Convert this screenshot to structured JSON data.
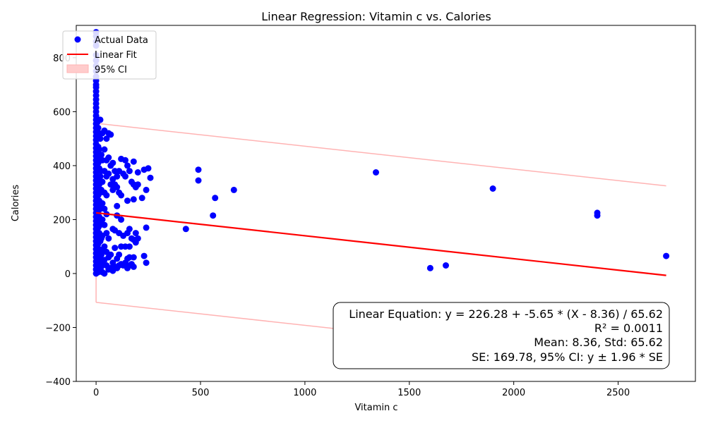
{
  "chart_data": {
    "type": "scatter",
    "title": "Linear Regression: Vitamin c vs. Calories",
    "xlabel": "Vitamin c",
    "ylabel": "Calories",
    "xlim": [
      -95,
      2870
    ],
    "ylim": [
      -400,
      920
    ],
    "xticks": [
      0,
      500,
      1000,
      1500,
      2000,
      2500
    ],
    "yticks": [
      -400,
      -200,
      0,
      200,
      400,
      600,
      800
    ],
    "grid": false,
    "legend_position": "top-left",
    "legend": [
      "Actual Data",
      "Linear Fit",
      "95% CI"
    ],
    "colors": {
      "points": "#0000ff",
      "fit": "#ff0000",
      "ci": "#ffb3b3"
    },
    "series": [
      {
        "name": "Actual Data",
        "points": [
          [
            0,
            895
          ],
          [
            0,
            880
          ],
          [
            0,
            860
          ],
          [
            0,
            845
          ],
          [
            0,
            810
          ],
          [
            0,
            790
          ],
          [
            0,
            770
          ],
          [
            0,
            750
          ],
          [
            0,
            730
          ],
          [
            0,
            715
          ],
          [
            0,
            700
          ],
          [
            0,
            690
          ],
          [
            0,
            675
          ],
          [
            0,
            660
          ],
          [
            0,
            645
          ],
          [
            0,
            630
          ],
          [
            0,
            615
          ],
          [
            0,
            600
          ],
          [
            0,
            585
          ],
          [
            0,
            570
          ],
          [
            0,
            555
          ],
          [
            0,
            540
          ],
          [
            0,
            525
          ],
          [
            0,
            510
          ],
          [
            0,
            495
          ],
          [
            0,
            480
          ],
          [
            0,
            465
          ],
          [
            0,
            450
          ],
          [
            0,
            435
          ],
          [
            0,
            420
          ],
          [
            0,
            405
          ],
          [
            0,
            390
          ],
          [
            0,
            375
          ],
          [
            0,
            360
          ],
          [
            0,
            345
          ],
          [
            0,
            330
          ],
          [
            0,
            315
          ],
          [
            0,
            300
          ],
          [
            0,
            285
          ],
          [
            0,
            270
          ],
          [
            0,
            255
          ],
          [
            0,
            240
          ],
          [
            0,
            225
          ],
          [
            0,
            210
          ],
          [
            0,
            195
          ],
          [
            0,
            180
          ],
          [
            0,
            165
          ],
          [
            0,
            150
          ],
          [
            0,
            135
          ],
          [
            0,
            120
          ],
          [
            0,
            105
          ],
          [
            0,
            90
          ],
          [
            0,
            75
          ],
          [
            0,
            60
          ],
          [
            0,
            45
          ],
          [
            0,
            30
          ],
          [
            0,
            15
          ],
          [
            0,
            0
          ],
          [
            5,
            560
          ],
          [
            5,
            500
          ],
          [
            5,
            440
          ],
          [
            5,
            380
          ],
          [
            5,
            320
          ],
          [
            5,
            260
          ],
          [
            5,
            200
          ],
          [
            5,
            140
          ],
          [
            5,
            80
          ],
          [
            5,
            20
          ],
          [
            10,
            540
          ],
          [
            10,
            470
          ],
          [
            10,
            410
          ],
          [
            10,
            350
          ],
          [
            10,
            290
          ],
          [
            10,
            230
          ],
          [
            10,
            170
          ],
          [
            10,
            110
          ],
          [
            10,
            50
          ],
          [
            10,
            5
          ],
          [
            15,
            520
          ],
          [
            15,
            460
          ],
          [
            15,
            390
          ],
          [
            15,
            330
          ],
          [
            15,
            270
          ],
          [
            15,
            210
          ],
          [
            15,
            150
          ],
          [
            15,
            90
          ],
          [
            15,
            35
          ],
          [
            20,
            570
          ],
          [
            20,
            500
          ],
          [
            20,
            430
          ],
          [
            20,
            360
          ],
          [
            20,
            300
          ],
          [
            20,
            240
          ],
          [
            20,
            180
          ],
          [
            20,
            120
          ],
          [
            20,
            60
          ],
          [
            20,
            10
          ],
          [
            25,
            440
          ],
          [
            25,
            380
          ],
          [
            25,
            310
          ],
          [
            25,
            250
          ],
          [
            25,
            190
          ],
          [
            25,
            130
          ],
          [
            25,
            70
          ],
          [
            25,
            25
          ],
          [
            30,
            520
          ],
          [
            30,
            420
          ],
          [
            30,
            340
          ],
          [
            30,
            260
          ],
          [
            30,
            200
          ],
          [
            30,
            140
          ],
          [
            30,
            85
          ],
          [
            30,
            40
          ],
          [
            30,
            5
          ],
          [
            40,
            530
          ],
          [
            40,
            460
          ],
          [
            40,
            380
          ],
          [
            40,
            300
          ],
          [
            40,
            240
          ],
          [
            40,
            180
          ],
          [
            40,
            100
          ],
          [
            40,
            50
          ],
          [
            40,
            0
          ],
          [
            50,
            500
          ],
          [
            50,
            420
          ],
          [
            50,
            360
          ],
          [
            50,
            290
          ],
          [
            50,
            220
          ],
          [
            50,
            150
          ],
          [
            50,
            80
          ],
          [
            50,
            30
          ],
          [
            60,
            520
          ],
          [
            60,
            430
          ],
          [
            60,
            370
          ],
          [
            60,
            130
          ],
          [
            60,
            60
          ],
          [
            60,
            15
          ],
          [
            70,
            515
          ],
          [
            70,
            400
          ],
          [
            70,
            330
          ],
          [
            70,
            70
          ],
          [
            70,
            20
          ],
          [
            80,
            410
          ],
          [
            80,
            350
          ],
          [
            80,
            310
          ],
          [
            80,
            165
          ],
          [
            80,
            40
          ],
          [
            80,
            10
          ],
          [
            90,
            380
          ],
          [
            90,
            330
          ],
          [
            90,
            160
          ],
          [
            90,
            95
          ],
          [
            90,
            25
          ],
          [
            100,
            360
          ],
          [
            100,
            320
          ],
          [
            100,
            250
          ],
          [
            100,
            215
          ],
          [
            100,
            55
          ],
          [
            100,
            20
          ],
          [
            110,
            380
          ],
          [
            110,
            300
          ],
          [
            110,
            150
          ],
          [
            110,
            70
          ],
          [
            110,
            30
          ],
          [
            120,
            425
          ],
          [
            120,
            290
          ],
          [
            120,
            200
          ],
          [
            120,
            100
          ],
          [
            120,
            35
          ],
          [
            130,
            370
          ],
          [
            130,
            140
          ],
          [
            130,
            30
          ],
          [
            140,
            420
          ],
          [
            140,
            360
          ],
          [
            140,
            100
          ],
          [
            140,
            40
          ],
          [
            150,
            400
          ],
          [
            150,
            270
          ],
          [
            150,
            150
          ],
          [
            150,
            55
          ],
          [
            150,
            20
          ],
          [
            160,
            380
          ],
          [
            160,
            165
          ],
          [
            160,
            100
          ],
          [
            160,
            60
          ],
          [
            160,
            30
          ],
          [
            170,
            340
          ],
          [
            170,
            130
          ],
          [
            170,
            35
          ],
          [
            180,
            415
          ],
          [
            180,
            330
          ],
          [
            180,
            275
          ],
          [
            180,
            125
          ],
          [
            180,
            60
          ],
          [
            180,
            25
          ],
          [
            190,
            320
          ],
          [
            190,
            150
          ],
          [
            190,
            115
          ],
          [
            200,
            375
          ],
          [
            200,
            330
          ],
          [
            200,
            130
          ],
          [
            220,
            280
          ],
          [
            230,
            385
          ],
          [
            230,
            65
          ],
          [
            240,
            310
          ],
          [
            240,
            170
          ],
          [
            240,
            40
          ],
          [
            250,
            390
          ],
          [
            260,
            355
          ],
          [
            430,
            165
          ],
          [
            490,
            385
          ],
          [
            490,
            345
          ],
          [
            560,
            215
          ],
          [
            570,
            280
          ],
          [
            660,
            310
          ],
          [
            1340,
            375
          ],
          [
            1600,
            20
          ],
          [
            1675,
            30
          ],
          [
            1900,
            315
          ],
          [
            2400,
            225
          ],
          [
            2400,
            215
          ],
          [
            2730,
            65
          ]
        ]
      },
      {
        "name": "Linear Fit",
        "x": [
          0,
          2730
        ],
        "y": [
          225,
          -7
        ]
      },
      {
        "name": "95% CI",
        "x": [
          0,
          2730
        ],
        "upper": [
          557,
          325
        ],
        "lower": [
          -107,
          -339
        ]
      }
    ],
    "annotation": [
      "Linear Equation: y = 226.28 + -5.65 * (X - 8.36) / 65.62",
      "R² = 0.0011",
      "Mean: 8.36, Std: 65.62",
      "SE: 169.78, 95% CI: y ± 1.96 * SE"
    ]
  }
}
